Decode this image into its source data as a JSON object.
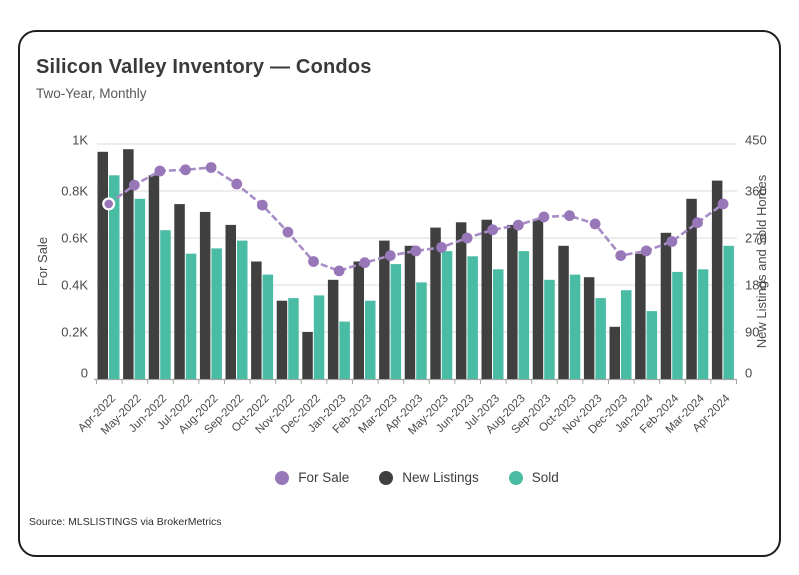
{
  "card": {
    "title": "Silicon Valley Inventory — Condos",
    "subtitle": "Two-Year, Monthly",
    "source": "Source:  MLSLISTINGS via BrokerMetrics"
  },
  "chart_data": {
    "type": "combo-bar-line",
    "title": "Silicon Valley Inventory — Condos",
    "subtitle": "Two-Year, Monthly",
    "categories": [
      "Apr-2022",
      "May-2022",
      "Jun-2022",
      "Jul-2022",
      "Aug-2022",
      "Sep-2022",
      "Oct-2022",
      "Nov-2022",
      "Dec-2022",
      "Jan-2023",
      "Feb-2023",
      "Mar-2023",
      "Apr-2023",
      "May-2023",
      "Jun-2023",
      "Jul-2023",
      "Aug-2023",
      "Sep-2023",
      "Oct-2023",
      "Nov-2023",
      "Dec-2023",
      "Jan-2024",
      "Feb-2024",
      "Mar-2024",
      "Apr-2024"
    ],
    "series": [
      {
        "name": "For Sale",
        "type": "line",
        "axis": "left",
        "color": "#9877B9",
        "line_color": "#A88CC6",
        "values": [
          745,
          825,
          885,
          890,
          900,
          830,
          740,
          625,
          500,
          460,
          495,
          525,
          545,
          560,
          600,
          635,
          655,
          690,
          695,
          660,
          525,
          545,
          585,
          665,
          745
        ]
      },
      {
        "name": "New Listings",
        "type": "bar",
        "axis": "right",
        "color": "#404040",
        "values": [
          435,
          440,
          390,
          335,
          320,
          295,
          225,
          150,
          90,
          190,
          225,
          265,
          255,
          290,
          300,
          305,
          295,
          305,
          255,
          195,
          100,
          240,
          280,
          345,
          380
        ]
      },
      {
        "name": "Sold",
        "type": "bar",
        "axis": "right",
        "color": "#4ABCA4",
        "values": [
          390,
          345,
          285,
          240,
          250,
          265,
          200,
          155,
          160,
          110,
          150,
          220,
          185,
          245,
          235,
          210,
          245,
          190,
          200,
          155,
          170,
          130,
          205,
          210,
          255
        ]
      }
    ],
    "left_axis": {
      "label": "For Sale",
      "ticks": [
        "0",
        "0.2K",
        "0.4K",
        "0.6K",
        "0.8K",
        "1K"
      ],
      "range": [
        0,
        1000
      ]
    },
    "right_axis": {
      "label": "New Listings and Sold Homes",
      "ticks": [
        "0",
        "90",
        "180",
        "270",
        "360",
        "450"
      ],
      "range": [
        0,
        450
      ]
    },
    "legend": [
      "For Sale",
      "New Listings",
      "Sold"
    ],
    "legend_position": "bottom",
    "grid": true,
    "colors": {
      "grid": "#dbdbdb",
      "axis": "#a6a6a6",
      "tick_text": "#4a4a4a"
    }
  }
}
